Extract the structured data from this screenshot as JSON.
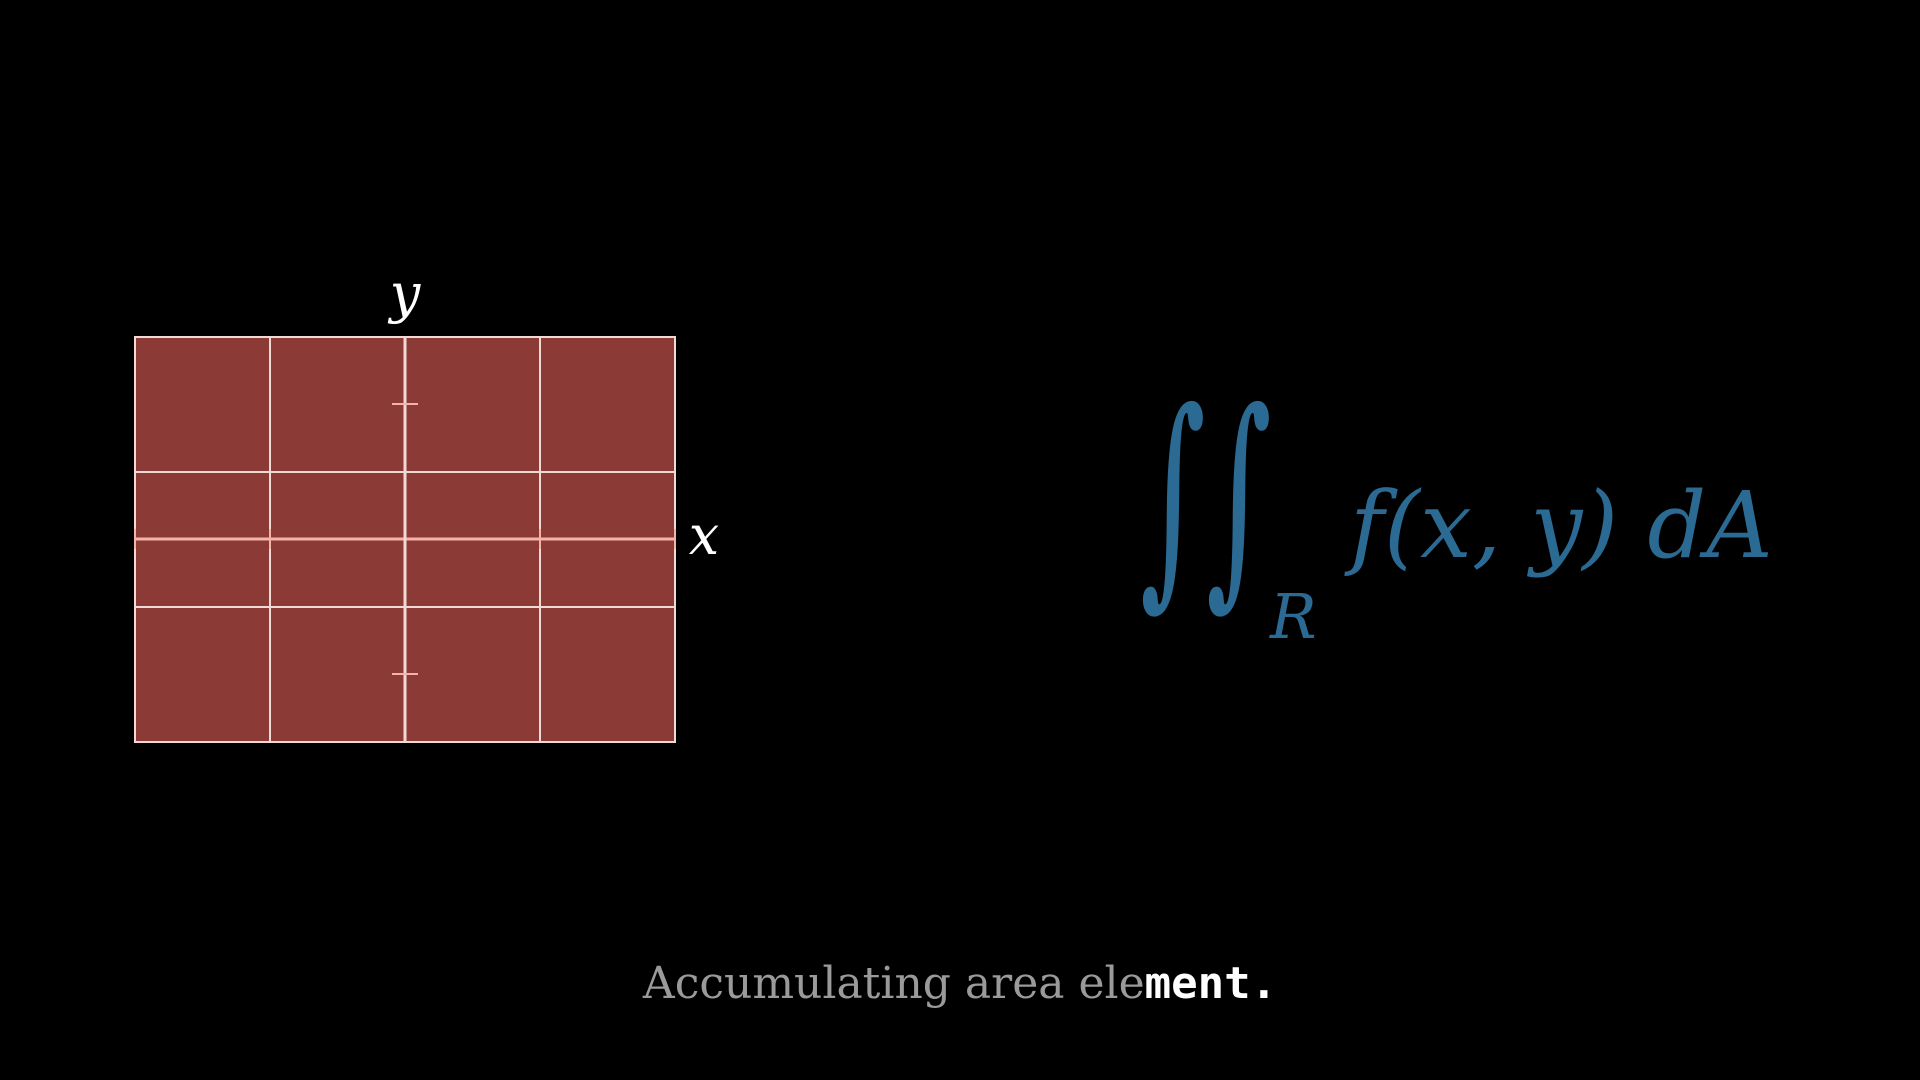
{
  "diagram": {
    "x_label": "x",
    "y_label": "y",
    "region_color": "#8b3a35",
    "grid_color": "#f2d9d6",
    "axis_color": "#f4b2a8",
    "columns": 4,
    "rows": 3
  },
  "formula": {
    "integral_1": "∫",
    "integral_2": "∫",
    "region": "R",
    "integrand": "f(x, y) dA",
    "color": "#2a6a93"
  },
  "caption": {
    "faded": "Accumulating area ele",
    "bright": "ment."
  }
}
